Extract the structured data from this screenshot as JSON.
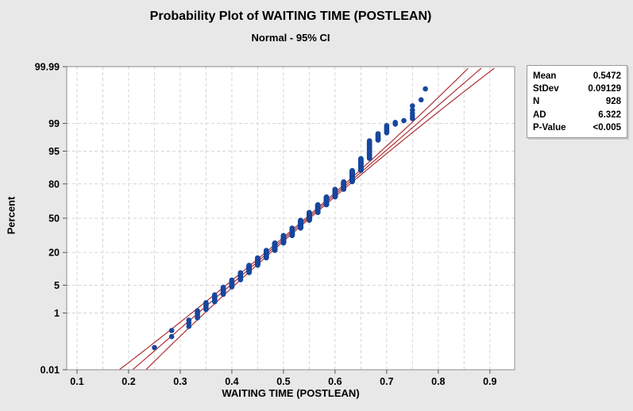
{
  "title": "Probability Plot of WAITING TIME (POSTLEAN)",
  "subtitle": "Normal - 95% CI",
  "stats_panel": {
    "rows": [
      {
        "label": "Mean",
        "value": "0.5472"
      },
      {
        "label": "StDev",
        "value": "0.09129"
      },
      {
        "label": "N",
        "value": "928"
      },
      {
        "label": "AD",
        "value": "6.322"
      },
      {
        "label": "P-Value",
        "value": "<0.005"
      }
    ]
  },
  "chart_data": {
    "type": "scatter",
    "subtype": "normal-probability-plot",
    "title": "Probability Plot of WAITING TIME (POSTLEAN)",
    "subtitle": "Normal - 95% CI",
    "xlabel": "WAITING TIME (POSTLEAN)",
    "ylabel": "Percent",
    "xlim": [
      0.08,
      0.948
    ],
    "x_ticks": [
      {
        "v": 0.1,
        "label": "0.1"
      },
      {
        "v": 0.2,
        "label": "0.2"
      },
      {
        "v": 0.3,
        "label": "0.3"
      },
      {
        "v": 0.4,
        "label": "0.4"
      },
      {
        "v": 0.5,
        "label": "0.5"
      },
      {
        "v": 0.6,
        "label": "0.6"
      },
      {
        "v": 0.7,
        "label": "0.7"
      },
      {
        "v": 0.8,
        "label": "0.8"
      },
      {
        "v": 0.9,
        "label": "0.9"
      }
    ],
    "x_grid_step": 0.05,
    "y_scale": "normal-quantile-percent",
    "y_ticks": [
      {
        "p": 99.99,
        "label": "99.99"
      },
      {
        "p": 99,
        "label": "99"
      },
      {
        "p": 95,
        "label": "95"
      },
      {
        "p": 80,
        "label": "80"
      },
      {
        "p": 50,
        "label": "50"
      },
      {
        "p": 20,
        "label": "20"
      },
      {
        "p": 5,
        "label": "5"
      },
      {
        "p": 1,
        "label": "1"
      },
      {
        "p": 0.01,
        "label": "0.01"
      }
    ],
    "ylim_percent": [
      0.01,
      99.99
    ],
    "grid": "dashed",
    "n": 928,
    "fit": {
      "distribution": "normal",
      "mean": 0.5472,
      "stdev": 0.09129,
      "ci_level": 0.95
    },
    "ci_halfwidth_model": {
      "a": 0.004,
      "b": 0.00157
    },
    "point_clusters_tied_x_with_counts": [
      {
        "x": 0.25,
        "count": 1
      },
      {
        "x": 0.2833,
        "count": 2
      },
      {
        "x": 0.3167,
        "count": 3
      },
      {
        "x": 0.3333,
        "count": 5
      },
      {
        "x": 0.35,
        "count": 7
      },
      {
        "x": 0.3667,
        "count": 10
      },
      {
        "x": 0.3833,
        "count": 14
      },
      {
        "x": 0.4,
        "count": 18
      },
      {
        "x": 0.4167,
        "count": 24
      },
      {
        "x": 0.4333,
        "count": 31
      },
      {
        "x": 0.45,
        "count": 38
      },
      {
        "x": 0.4667,
        "count": 46
      },
      {
        "x": 0.4833,
        "count": 53
      },
      {
        "x": 0.5,
        "count": 59
      },
      {
        "x": 0.5167,
        "count": 64
      },
      {
        "x": 0.5333,
        "count": 70
      },
      {
        "x": 0.55,
        "count": 71
      },
      {
        "x": 0.5667,
        "count": 68
      },
      {
        "x": 0.5833,
        "count": 65
      },
      {
        "x": 0.6,
        "count": 57
      },
      {
        "x": 0.6167,
        "count": 50
      },
      {
        "x": 0.6333,
        "count": 60
      },
      {
        "x": 0.65,
        "count": 46
      },
      {
        "x": 0.6667,
        "count": 40
      },
      {
        "x": 0.6833,
        "count": 9
      },
      {
        "x": 0.7,
        "count": 7
      },
      {
        "x": 0.7167,
        "count": 2
      },
      {
        "x": 0.7333,
        "count": 1
      },
      {
        "x": 0.75,
        "count": 5
      },
      {
        "x": 0.7667,
        "count": 1
      },
      {
        "x": 0.775,
        "count": 1
      }
    ],
    "legend_position": "outside-right",
    "colors": {
      "page_bg": "#E8E8E8",
      "plot_bg": "#FFFFFF",
      "grid": "#D5D5D5",
      "frame": "#8C8C8C",
      "tick": "#555555",
      "point": "#17479E",
      "fit_line": "#AE3135",
      "ci_line": "#AE3135",
      "text": "#000000"
    }
  }
}
